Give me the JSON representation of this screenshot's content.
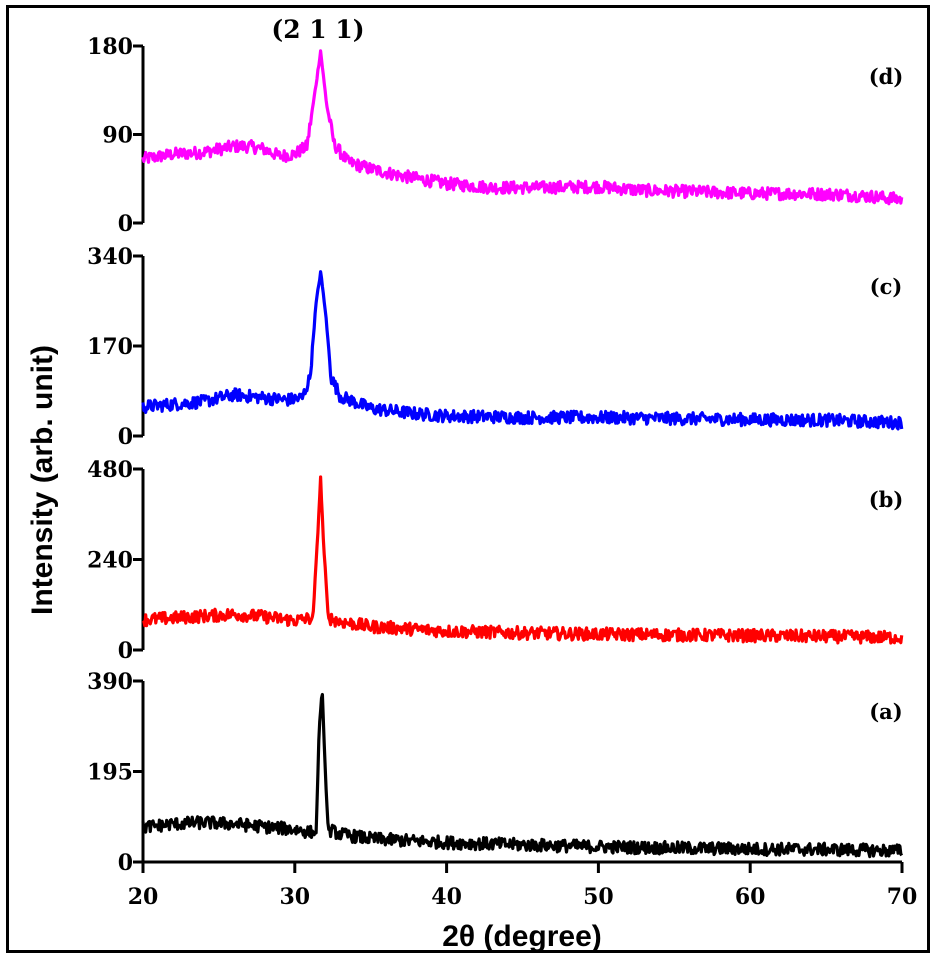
{
  "chart_data": {
    "type": "line",
    "title": "",
    "xlabel": "2θ (degree)",
    "ylabel": "Intensity (arb. unit)",
    "xlim": [
      20,
      70
    ],
    "xticks": [
      20,
      30,
      40,
      50,
      60,
      70
    ],
    "xtick_labels": [
      "20",
      "30",
      "40",
      "50",
      "60",
      "70"
    ],
    "annotation": "(2 1 1)",
    "peak_position": 31.7,
    "panels": [
      {
        "label": "(d)",
        "color": "#ff00ff",
        "ylim": [
          0,
          180
        ],
        "yticks": [
          0,
          90,
          180
        ],
        "ytick_labels": [
          "0",
          "90",
          "180"
        ],
        "points": [
          [
            20,
            65
          ],
          [
            22,
            70
          ],
          [
            24,
            72
          ],
          [
            26,
            78
          ],
          [
            27,
            78
          ],
          [
            28,
            75
          ],
          [
            29,
            68
          ],
          [
            30,
            70
          ],
          [
            30.8,
            78
          ],
          [
            31.3,
            130
          ],
          [
            31.7,
            175
          ],
          [
            32.1,
            120
          ],
          [
            32.6,
            80
          ],
          [
            33.5,
            62
          ],
          [
            35,
            55
          ],
          [
            37,
            48
          ],
          [
            40,
            40
          ],
          [
            43,
            36
          ],
          [
            46,
            36
          ],
          [
            50,
            37
          ],
          [
            53,
            33
          ],
          [
            56,
            32
          ],
          [
            60,
            30
          ],
          [
            63,
            30
          ],
          [
            66,
            29
          ],
          [
            68,
            27
          ],
          [
            70,
            24
          ]
        ]
      },
      {
        "label": "(c)",
        "color": "#0000ff",
        "ylim": [
          0,
          340
        ],
        "yticks": [
          0,
          170,
          340
        ],
        "ytick_labels": [
          "0",
          "170",
          "340"
        ],
        "points": [
          [
            20,
            55
          ],
          [
            22,
            60
          ],
          [
            24,
            65
          ],
          [
            26,
            78
          ],
          [
            28,
            72
          ],
          [
            29.5,
            68
          ],
          [
            30.5,
            72
          ],
          [
            31.0,
            110
          ],
          [
            31.4,
            250
          ],
          [
            31.7,
            310
          ],
          [
            32.0,
            240
          ],
          [
            32.4,
            110
          ],
          [
            33,
            75
          ],
          [
            35,
            52
          ],
          [
            38,
            42
          ],
          [
            40,
            38
          ],
          [
            45,
            35
          ],
          [
            50,
            35
          ],
          [
            55,
            33
          ],
          [
            60,
            31
          ],
          [
            65,
            30
          ],
          [
            67,
            28
          ],
          [
            70,
            25
          ]
        ]
      },
      {
        "label": "(b)",
        "color": "#ff0000",
        "ylim": [
          0,
          480
        ],
        "yticks": [
          0,
          240,
          480
        ],
        "ytick_labels": [
          "0",
          "240",
          "480"
        ],
        "points": [
          [
            20,
            80
          ],
          [
            22,
            85
          ],
          [
            24,
            90
          ],
          [
            26,
            95
          ],
          [
            28,
            88
          ],
          [
            30,
            78
          ],
          [
            31.2,
            85
          ],
          [
            31.5,
            300
          ],
          [
            31.7,
            455
          ],
          [
            31.9,
            280
          ],
          [
            32.2,
            85
          ],
          [
            33,
            75
          ],
          [
            35,
            62
          ],
          [
            38,
            55
          ],
          [
            40,
            50
          ],
          [
            45,
            45
          ],
          [
            50,
            42
          ],
          [
            55,
            40
          ],
          [
            60,
            38
          ],
          [
            65,
            36
          ],
          [
            70,
            33
          ]
        ]
      },
      {
        "label": "(a)",
        "color": "#000000",
        "ylim": [
          0,
          390
        ],
        "yticks": [
          0,
          195,
          390
        ],
        "ytick_labels": [
          "0",
          "195",
          "390"
        ],
        "points": [
          [
            20,
            75
          ],
          [
            22,
            82
          ],
          [
            24,
            85
          ],
          [
            26,
            82
          ],
          [
            28,
            76
          ],
          [
            30,
            70
          ],
          [
            31.4,
            62
          ],
          [
            31.6,
            280
          ],
          [
            31.8,
            375
          ],
          [
            32.0,
            200
          ],
          [
            32.2,
            70
          ],
          [
            33,
            60
          ],
          [
            35,
            50
          ],
          [
            38,
            45
          ],
          [
            40,
            42
          ],
          [
            45,
            37
          ],
          [
            50,
            33
          ],
          [
            55,
            30
          ],
          [
            60,
            28
          ],
          [
            65,
            27
          ],
          [
            70,
            24
          ]
        ]
      }
    ]
  }
}
